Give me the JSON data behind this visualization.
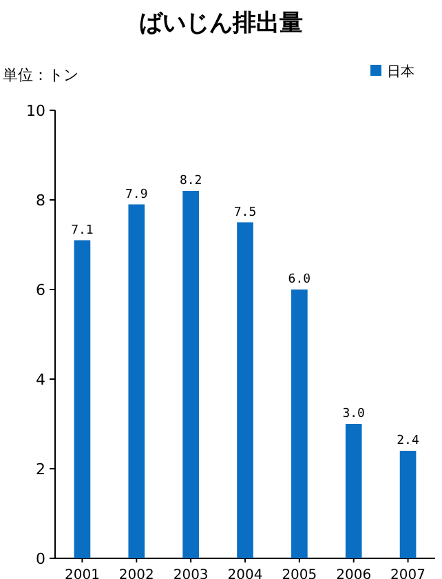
{
  "chart_data": {
    "type": "bar",
    "title": "ばいじん排出量",
    "ylabel": "単位：トン",
    "categories": [
      "2001",
      "2002",
      "2003",
      "2004",
      "2005",
      "2006",
      "2007"
    ],
    "series": [
      {
        "name": "日本",
        "color": "#0a6fc2",
        "values": [
          7.1,
          7.9,
          8.2,
          7.5,
          6.0,
          3.0,
          2.4
        ]
      }
    ],
    "ylim": [
      0,
      10
    ],
    "yticks": [
      0,
      2,
      4,
      6,
      8,
      10
    ],
    "value_labels": [
      "7.1",
      "7.9",
      "8.2",
      "7.5",
      "6.0",
      "3.0",
      "2.4"
    ],
    "legend": "top right",
    "grid": false
  }
}
